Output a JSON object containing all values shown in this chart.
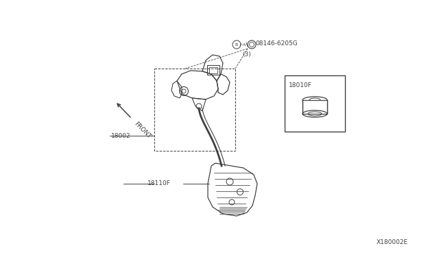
{
  "bg_color": "#ffffff",
  "lc": "#404040",
  "part_numbers": {
    "bolt_pn": "08146-6205G",
    "bolt_qty": "(3)",
    "bracket_pn": "18002",
    "pedal_assy_pn": "18010F",
    "pedal_arm_pn": "18110F"
  },
  "diagram_ref": "X180002E"
}
